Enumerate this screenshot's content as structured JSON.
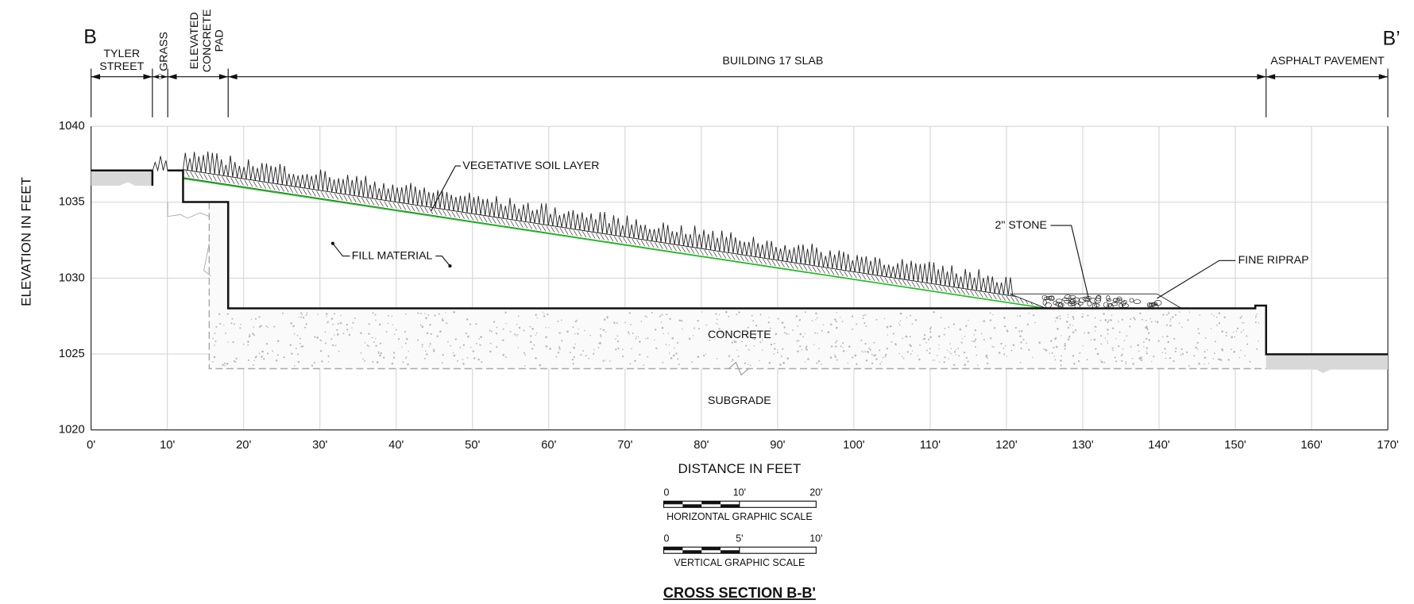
{
  "header": {
    "start_label": "B",
    "end_label": "B’"
  },
  "segments": [
    {
      "lines": [
        "TYLER",
        "STREET"
      ]
    },
    {
      "lines": [
        "GRASS"
      ]
    },
    {
      "lines": [
        "ELEVATED",
        "CONCRETE",
        "PAD"
      ]
    },
    {
      "lines": [
        "BUILDING 17 SLAB"
      ]
    },
    {
      "lines": [
        "ASPHALT PAVEMENT"
      ]
    }
  ],
  "y_axis": {
    "title": "ELEVATION IN FEET",
    "ticks": [
      {
        "value": 1020,
        "label": "1020"
      },
      {
        "value": 1025,
        "label": "1025"
      },
      {
        "value": 1030,
        "label": "1030"
      },
      {
        "value": 1035,
        "label": "1035"
      },
      {
        "value": 1040,
        "label": "1040"
      }
    ]
  },
  "x_axis": {
    "title": "DISTANCE IN FEET",
    "ticks": [
      {
        "value": 0,
        "label": "0'"
      },
      {
        "value": 10,
        "label": "10'"
      },
      {
        "value": 20,
        "label": "20'"
      },
      {
        "value": 30,
        "label": "30'"
      },
      {
        "value": 40,
        "label": "40'"
      },
      {
        "value": 50,
        "label": "50'"
      },
      {
        "value": 60,
        "label": "60'"
      },
      {
        "value": 70,
        "label": "70'"
      },
      {
        "value": 80,
        "label": "80'"
      },
      {
        "value": 90,
        "label": "90'"
      },
      {
        "value": 100,
        "label": "100'"
      },
      {
        "value": 110,
        "label": "110'"
      },
      {
        "value": 120,
        "label": "120'"
      },
      {
        "value": 130,
        "label": "130'"
      },
      {
        "value": 140,
        "label": "140'"
      },
      {
        "value": 150,
        "label": "150'"
      },
      {
        "value": 160,
        "label": "160'"
      },
      {
        "value": 170,
        "label": "170'"
      }
    ]
  },
  "callouts": {
    "vegetative": "VEGETATIVE SOIL LAYER",
    "fill": "FILL MATERIAL",
    "stone": "2\" STONE",
    "riprap": "FINE RIPRAP",
    "concrete": "CONCRETE",
    "subgrade": "SUBGRADE"
  },
  "scales": [
    {
      "ticks": [
        "0",
        "10'",
        "20'"
      ],
      "caption": "HORIZONTAL GRAPHIC SCALE"
    },
    {
      "ticks": [
        "0",
        "5'",
        "10'"
      ],
      "caption": "VERTICAL GRAPHIC SCALE"
    }
  ],
  "title": "CROSS SECTION B-B'"
}
